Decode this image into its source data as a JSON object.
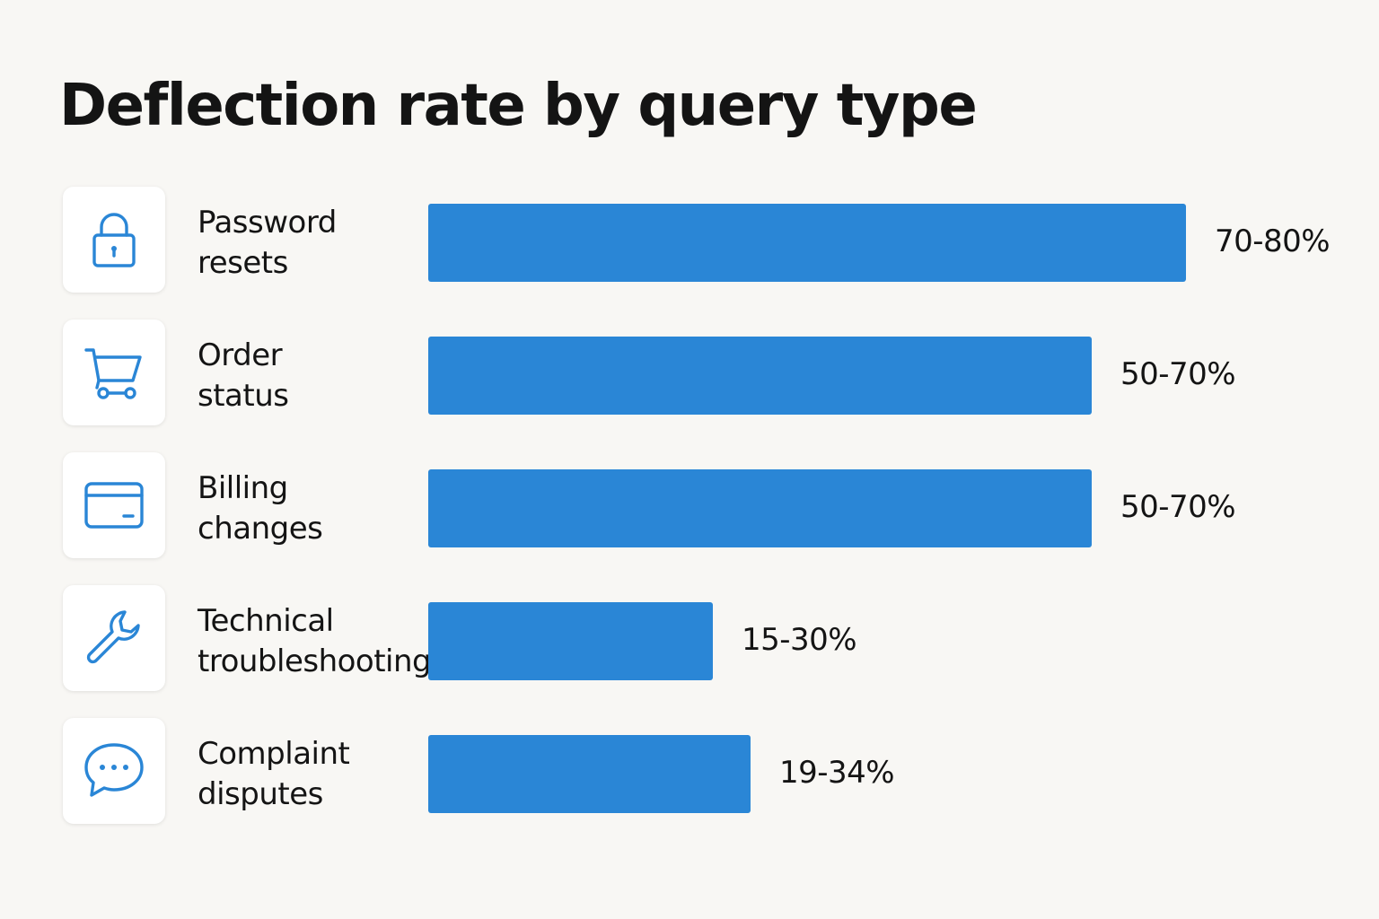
{
  "chart_data": {
    "type": "bar",
    "orientation": "horizontal",
    "title": "Deflection rate by query type",
    "unit": "%",
    "categories": [
      "Password\nresets",
      "Order\nstatus",
      "Billing\nchanges",
      "Technical\ntroubleshooting",
      "Complaint\ndisputes"
    ],
    "ranges": [
      [
        70,
        80
      ],
      [
        50,
        70
      ],
      [
        50,
        70
      ],
      [
        15,
        30
      ],
      [
        19,
        34
      ]
    ],
    "value_labels": [
      "70-80%",
      "50-70%",
      "50-70%",
      "15-30%",
      "19-34%"
    ],
    "bar_color": "#2a86d6",
    "icon_color": "#2a86d6",
    "grid": false,
    "legend": "none"
  },
  "icons": [
    "lock-icon",
    "cart-icon",
    "credit-card-icon",
    "wrench-icon",
    "chat-bubble-icon"
  ]
}
